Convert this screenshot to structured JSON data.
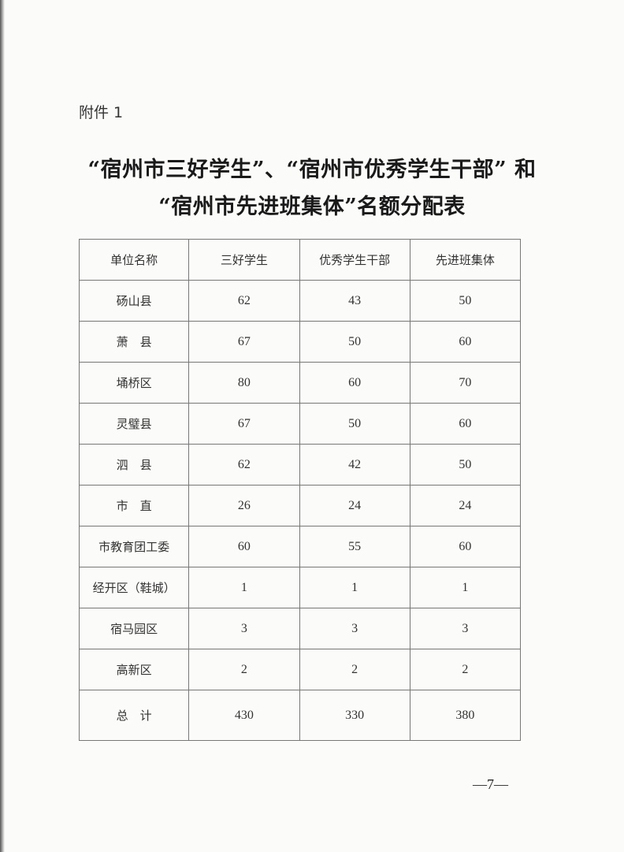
{
  "attachment_label": "附件 1",
  "title_line1": "“宿州市三好学生”、“宿州市优秀学生干部” 和",
  "title_line2": "“宿州市先进班集体”名额分配表",
  "table": {
    "headers": [
      "单位名称",
      "三好学生",
      "优秀学生干部",
      "先进班集体"
    ],
    "rows": [
      [
        "砀山县",
        "62",
        "43",
        "50"
      ],
      [
        "萧　县",
        "67",
        "50",
        "60"
      ],
      [
        "埇桥区",
        "80",
        "60",
        "70"
      ],
      [
        "灵璧县",
        "67",
        "50",
        "60"
      ],
      [
        "泗　县",
        "62",
        "42",
        "50"
      ],
      [
        "市　直",
        "26",
        "24",
        "24"
      ],
      [
        "市教育团工委",
        "60",
        "55",
        "60"
      ],
      [
        "经开区（鞋城）",
        "1",
        "1",
        "1"
      ],
      [
        "宿马园区",
        "3",
        "3",
        "3"
      ],
      [
        "高新区",
        "2",
        "2",
        "2"
      ]
    ],
    "total": [
      "总　计",
      "430",
      "330",
      "380"
    ]
  },
  "page_number": "—7—"
}
